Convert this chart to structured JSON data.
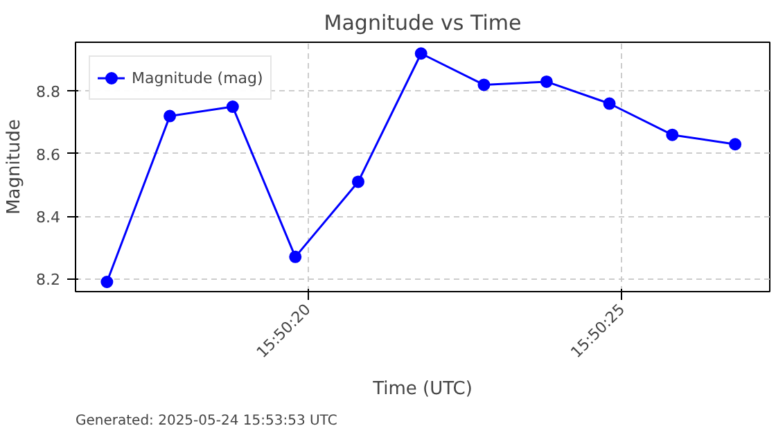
{
  "chart_data": {
    "type": "line",
    "title": "Magnitude vs Time",
    "xlabel": "Time (UTC)",
    "ylabel": "Magnitude",
    "x": [
      15.838,
      15.838278,
      15.838556,
      15.838833,
      15.839111,
      15.839389,
      15.839667,
      15.839944,
      15.840222,
      15.8405,
      15.840778
    ],
    "series": [
      {
        "name": "Magnitude (mag)",
        "color": "#0000ff",
        "values": [
          8.19,
          8.72,
          8.75,
          8.27,
          8.51,
          8.92,
          8.82,
          8.83,
          8.76,
          8.66,
          8.63
        ]
      }
    ],
    "xlim": [
      15.837861,
      15.840931
    ],
    "xticks": [
      {
        "value": 15.838889,
        "label": "15:50:20"
      },
      {
        "value": 15.840278,
        "label": "15:50:25"
      }
    ],
    "ylim": [
      8.159,
      8.956
    ],
    "yticks": [
      {
        "value": 8.2,
        "label": "8.2"
      },
      {
        "value": 8.4,
        "label": "8.4"
      },
      {
        "value": 8.6,
        "label": "8.6"
      },
      {
        "value": 8.8,
        "label": "8.8"
      }
    ],
    "grid": true,
    "legend": "top left",
    "marker": "circle",
    "line_style": "solid",
    "annotations": [
      "Generated: 2025-05-24 15:53:53 UTC"
    ]
  }
}
